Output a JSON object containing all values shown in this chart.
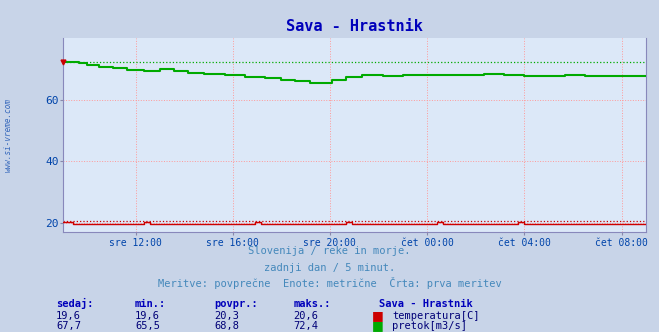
{
  "title": "Sava - Hrastnik",
  "background_color": "#c8d4e8",
  "plot_bg_color": "#dce8f8",
  "title_color": "#0000bb",
  "title_fontsize": 11,
  "xlabel_color": "#0044aa",
  "ylabel_color": "#0044aa",
  "watermark": "www.si-vreme.com",
  "ylim": [
    17,
    80
  ],
  "yticks": [
    20,
    40,
    60
  ],
  "xtick_labels": [
    "sre 12:00",
    "sre 16:00",
    "sre 20:00",
    "čet 00:00",
    "čet 04:00",
    "čet 08:00"
  ],
  "xtick_positions": [
    36,
    84,
    132,
    180,
    228,
    276
  ],
  "grid_color": "#ff9999",
  "temp_color": "#cc0000",
  "flow_color": "#00aa00",
  "axis_color": "#8888aa",
  "border_color": "#8888bb",
  "footer_line1": "Slovenija / reke in morje.",
  "footer_line2": "zadnji dan / 5 minut.",
  "footer_line3": "Meritve: povprečne  Enote: metrične  Črta: prva meritev",
  "footer_color": "#4488bb",
  "footer_fontsize": 7.5,
  "table_header_color": "#0000bb",
  "table_value_color": "#000077",
  "sedaj_label": "sedaj:",
  "min_label": "min.:",
  "povpr_label": "povpr.:",
  "maks_label": "maks.:",
  "station_label": "Sava - Hrastnik",
  "temp_label": "temperatura[C]",
  "flow_label": "pretok[m3/s]",
  "temp_sedaj": "19,6",
  "temp_min": "19,6",
  "temp_povpr": "20,3",
  "temp_maks": "20,6",
  "flow_sedaj": "67,7",
  "flow_min": "65,5",
  "flow_povpr": "68,8",
  "flow_maks": "72,4",
  "n_points": 289,
  "xlim": [
    0,
    288
  ]
}
